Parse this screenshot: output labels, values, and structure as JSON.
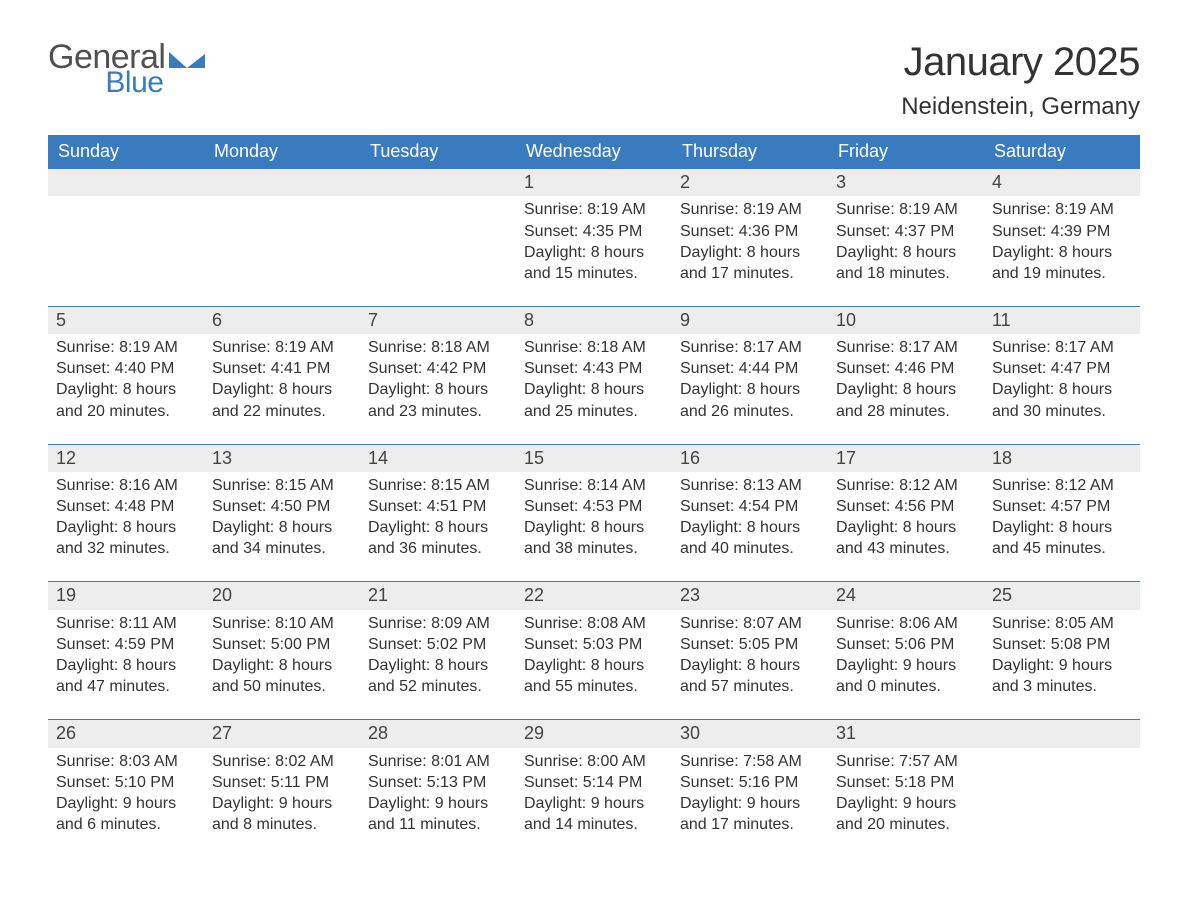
{
  "logo": {
    "word1": "General",
    "word2": "Blue",
    "flag_color": "#3a7bbf",
    "text_gray": "#505050"
  },
  "title": "January 2025",
  "location": "Neidenstein, Germany",
  "colors": {
    "header_bg": "#3a7bbf",
    "header_text": "#ffffff",
    "daynum_bg": "#ededed",
    "row_border": "#3a7bbf",
    "body_text": "#333333",
    "page_bg": "#ffffff"
  },
  "day_headers": [
    "Sunday",
    "Monday",
    "Tuesday",
    "Wednesday",
    "Thursday",
    "Friday",
    "Saturday"
  ],
  "weeks": [
    [
      null,
      null,
      null,
      {
        "n": "1",
        "sunrise": "Sunrise: 8:19 AM",
        "sunset": "Sunset: 4:35 PM",
        "d1": "Daylight: 8 hours",
        "d2": "and 15 minutes."
      },
      {
        "n": "2",
        "sunrise": "Sunrise: 8:19 AM",
        "sunset": "Sunset: 4:36 PM",
        "d1": "Daylight: 8 hours",
        "d2": "and 17 minutes."
      },
      {
        "n": "3",
        "sunrise": "Sunrise: 8:19 AM",
        "sunset": "Sunset: 4:37 PM",
        "d1": "Daylight: 8 hours",
        "d2": "and 18 minutes."
      },
      {
        "n": "4",
        "sunrise": "Sunrise: 8:19 AM",
        "sunset": "Sunset: 4:39 PM",
        "d1": "Daylight: 8 hours",
        "d2": "and 19 minutes."
      }
    ],
    [
      {
        "n": "5",
        "sunrise": "Sunrise: 8:19 AM",
        "sunset": "Sunset: 4:40 PM",
        "d1": "Daylight: 8 hours",
        "d2": "and 20 minutes."
      },
      {
        "n": "6",
        "sunrise": "Sunrise: 8:19 AM",
        "sunset": "Sunset: 4:41 PM",
        "d1": "Daylight: 8 hours",
        "d2": "and 22 minutes."
      },
      {
        "n": "7",
        "sunrise": "Sunrise: 8:18 AM",
        "sunset": "Sunset: 4:42 PM",
        "d1": "Daylight: 8 hours",
        "d2": "and 23 minutes."
      },
      {
        "n": "8",
        "sunrise": "Sunrise: 8:18 AM",
        "sunset": "Sunset: 4:43 PM",
        "d1": "Daylight: 8 hours",
        "d2": "and 25 minutes."
      },
      {
        "n": "9",
        "sunrise": "Sunrise: 8:17 AM",
        "sunset": "Sunset: 4:44 PM",
        "d1": "Daylight: 8 hours",
        "d2": "and 26 minutes."
      },
      {
        "n": "10",
        "sunrise": "Sunrise: 8:17 AM",
        "sunset": "Sunset: 4:46 PM",
        "d1": "Daylight: 8 hours",
        "d2": "and 28 minutes."
      },
      {
        "n": "11",
        "sunrise": "Sunrise: 8:17 AM",
        "sunset": "Sunset: 4:47 PM",
        "d1": "Daylight: 8 hours",
        "d2": "and 30 minutes."
      }
    ],
    [
      {
        "n": "12",
        "sunrise": "Sunrise: 8:16 AM",
        "sunset": "Sunset: 4:48 PM",
        "d1": "Daylight: 8 hours",
        "d2": "and 32 minutes."
      },
      {
        "n": "13",
        "sunrise": "Sunrise: 8:15 AM",
        "sunset": "Sunset: 4:50 PM",
        "d1": "Daylight: 8 hours",
        "d2": "and 34 minutes."
      },
      {
        "n": "14",
        "sunrise": "Sunrise: 8:15 AM",
        "sunset": "Sunset: 4:51 PM",
        "d1": "Daylight: 8 hours",
        "d2": "and 36 minutes."
      },
      {
        "n": "15",
        "sunrise": "Sunrise: 8:14 AM",
        "sunset": "Sunset: 4:53 PM",
        "d1": "Daylight: 8 hours",
        "d2": "and 38 minutes."
      },
      {
        "n": "16",
        "sunrise": "Sunrise: 8:13 AM",
        "sunset": "Sunset: 4:54 PM",
        "d1": "Daylight: 8 hours",
        "d2": "and 40 minutes."
      },
      {
        "n": "17",
        "sunrise": "Sunrise: 8:12 AM",
        "sunset": "Sunset: 4:56 PM",
        "d1": "Daylight: 8 hours",
        "d2": "and 43 minutes."
      },
      {
        "n": "18",
        "sunrise": "Sunrise: 8:12 AM",
        "sunset": "Sunset: 4:57 PM",
        "d1": "Daylight: 8 hours",
        "d2": "and 45 minutes."
      }
    ],
    [
      {
        "n": "19",
        "sunrise": "Sunrise: 8:11 AM",
        "sunset": "Sunset: 4:59 PM",
        "d1": "Daylight: 8 hours",
        "d2": "and 47 minutes."
      },
      {
        "n": "20",
        "sunrise": "Sunrise: 8:10 AM",
        "sunset": "Sunset: 5:00 PM",
        "d1": "Daylight: 8 hours",
        "d2": "and 50 minutes."
      },
      {
        "n": "21",
        "sunrise": "Sunrise: 8:09 AM",
        "sunset": "Sunset: 5:02 PM",
        "d1": "Daylight: 8 hours",
        "d2": "and 52 minutes."
      },
      {
        "n": "22",
        "sunrise": "Sunrise: 8:08 AM",
        "sunset": "Sunset: 5:03 PM",
        "d1": "Daylight: 8 hours",
        "d2": "and 55 minutes."
      },
      {
        "n": "23",
        "sunrise": "Sunrise: 8:07 AM",
        "sunset": "Sunset: 5:05 PM",
        "d1": "Daylight: 8 hours",
        "d2": "and 57 minutes."
      },
      {
        "n": "24",
        "sunrise": "Sunrise: 8:06 AM",
        "sunset": "Sunset: 5:06 PM",
        "d1": "Daylight: 9 hours",
        "d2": "and 0 minutes."
      },
      {
        "n": "25",
        "sunrise": "Sunrise: 8:05 AM",
        "sunset": "Sunset: 5:08 PM",
        "d1": "Daylight: 9 hours",
        "d2": "and 3 minutes."
      }
    ],
    [
      {
        "n": "26",
        "sunrise": "Sunrise: 8:03 AM",
        "sunset": "Sunset: 5:10 PM",
        "d1": "Daylight: 9 hours",
        "d2": "and 6 minutes."
      },
      {
        "n": "27",
        "sunrise": "Sunrise: 8:02 AM",
        "sunset": "Sunset: 5:11 PM",
        "d1": "Daylight: 9 hours",
        "d2": "and 8 minutes."
      },
      {
        "n": "28",
        "sunrise": "Sunrise: 8:01 AM",
        "sunset": "Sunset: 5:13 PM",
        "d1": "Daylight: 9 hours",
        "d2": "and 11 minutes."
      },
      {
        "n": "29",
        "sunrise": "Sunrise: 8:00 AM",
        "sunset": "Sunset: 5:14 PM",
        "d1": "Daylight: 9 hours",
        "d2": "and 14 minutes."
      },
      {
        "n": "30",
        "sunrise": "Sunrise: 7:58 AM",
        "sunset": "Sunset: 5:16 PM",
        "d1": "Daylight: 9 hours",
        "d2": "and 17 minutes."
      },
      {
        "n": "31",
        "sunrise": "Sunrise: 7:57 AM",
        "sunset": "Sunset: 5:18 PM",
        "d1": "Daylight: 9 hours",
        "d2": "and 20 minutes."
      },
      null
    ]
  ]
}
